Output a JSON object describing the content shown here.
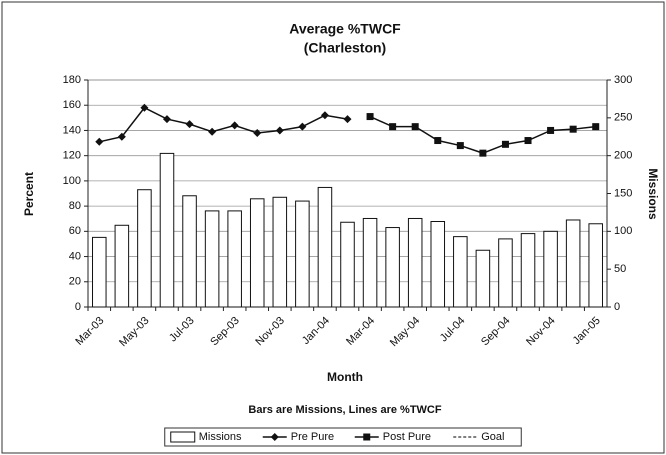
{
  "chart_data": {
    "type": "bar-line",
    "title": "Average %TWCF",
    "subtitle": "(Charleston)",
    "xlabel": "Month",
    "ylabel": "Percent",
    "y2label": "Missions",
    "note": "Bars are Missions, Lines are %TWCF",
    "categories": [
      "Mar-03",
      null,
      "May-03",
      null,
      "Jul-03",
      null,
      "Sep-03",
      null,
      "Nov-03",
      null,
      "Jan-04",
      null,
      "Mar-04",
      null,
      "May-04",
      null,
      "Jul-04",
      null,
      "Sep-04",
      null,
      "Nov-04",
      null,
      "Jan-05"
    ],
    "ylim": [
      0,
      180
    ],
    "yticks": [
      0,
      20,
      40,
      60,
      80,
      100,
      120,
      140,
      160,
      180
    ],
    "y2lim": [
      0,
      300
    ],
    "y2ticks": [
      0,
      50,
      100,
      150,
      200,
      250,
      300
    ],
    "grid": true,
    "legend": "bottom",
    "series": [
      {
        "name": "Missions",
        "kind": "bar",
        "axis": "y2",
        "color": "#ffffff",
        "values": [
          92,
          108,
          155,
          203,
          147,
          127,
          127,
          143,
          145,
          140,
          158,
          112,
          117,
          105,
          117,
          113,
          93,
          75,
          90,
          97,
          100,
          115,
          110
        ]
      },
      {
        "name": "Pre Pure",
        "kind": "line",
        "marker": "diamond",
        "color": "#111111",
        "values": [
          131,
          135,
          158,
          149,
          145,
          139,
          144,
          138,
          140,
          143,
          152,
          149,
          null,
          null,
          null,
          null,
          null,
          null,
          null,
          null,
          null,
          null,
          null
        ]
      },
      {
        "name": "Post Pure",
        "kind": "line",
        "marker": "square",
        "color": "#111111",
        "values": [
          null,
          null,
          null,
          null,
          null,
          null,
          null,
          null,
          null,
          null,
          null,
          null,
          151,
          143,
          143,
          132,
          128,
          122,
          129,
          132,
          140,
          141,
          143
        ]
      },
      {
        "name": "Goal",
        "kind": "line",
        "marker": "none",
        "dash": true,
        "color": "#555555",
        "values": [
          null,
          null,
          null,
          null,
          null,
          null,
          null,
          null,
          null,
          null,
          null,
          null,
          null,
          null,
          null,
          null,
          null,
          null,
          null,
          null,
          null,
          null,
          null
        ]
      }
    ]
  }
}
